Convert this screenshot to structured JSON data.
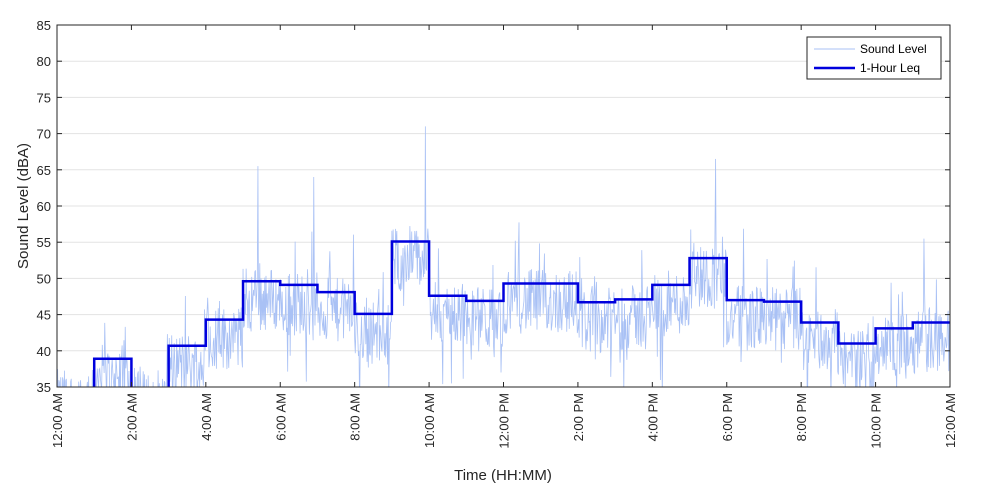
{
  "chart_data": {
    "type": "line",
    "xlabel": "Time (HH:MM)",
    "ylabel": "Sound Level (dBA)",
    "xlim_hours": [
      0,
      24
    ],
    "ylim": [
      35,
      85
    ],
    "yticks": [
      35,
      40,
      45,
      50,
      55,
      60,
      65,
      70,
      75,
      80,
      85
    ],
    "xticks": [
      {
        "hour": 0,
        "label": "12:00 AM"
      },
      {
        "hour": 2,
        "label": "2:00 AM"
      },
      {
        "hour": 4,
        "label": "4:00 AM"
      },
      {
        "hour": 6,
        "label": "6:00 AM"
      },
      {
        "hour": 8,
        "label": "8:00 AM"
      },
      {
        "hour": 10,
        "label": "10:00 AM"
      },
      {
        "hour": 12,
        "label": "12:00 PM"
      },
      {
        "hour": 14,
        "label": "2:00 PM"
      },
      {
        "hour": 16,
        "label": "4:00 PM"
      },
      {
        "hour": 18,
        "label": "6:00 PM"
      },
      {
        "hour": 20,
        "label": "8:00 PM"
      },
      {
        "hour": 22,
        "label": "10:00 PM"
      },
      {
        "hour": 24,
        "label": "12:00 AM"
      }
    ],
    "grid": true,
    "legend_position": "top-right",
    "series": [
      {
        "name": "Sound Level",
        "color": "#a9c1f5",
        "style": "thin noisy line (per-minute samples)",
        "spike_events": [
          {
            "hour": 5.4,
            "value": 65.5
          },
          {
            "hour": 6.9,
            "value": 64
          },
          {
            "hour": 9.9,
            "value": 71
          },
          {
            "hour": 17.7,
            "value": 66.5
          },
          {
            "hour": 23.3,
            "value": 55.5
          }
        ]
      },
      {
        "name": "1-Hour Leq",
        "color": "#0000dd",
        "style": "thick step line",
        "hours": [
          0,
          1,
          2,
          3,
          4,
          5,
          6,
          7,
          8,
          9,
          10,
          11,
          12,
          13,
          14,
          15,
          16,
          17,
          18,
          19,
          20,
          21,
          22,
          23
        ],
        "values": [
          33,
          38.9,
          33,
          40.7,
          44.3,
          49.6,
          49.1,
          48.1,
          45.1,
          55.1,
          47.6,
          46.9,
          49.3,
          49.3,
          46.7,
          47.1,
          49.1,
          52.8,
          47.0,
          46.8,
          43.9,
          41.0,
          43.1,
          43.9
        ]
      }
    ]
  }
}
